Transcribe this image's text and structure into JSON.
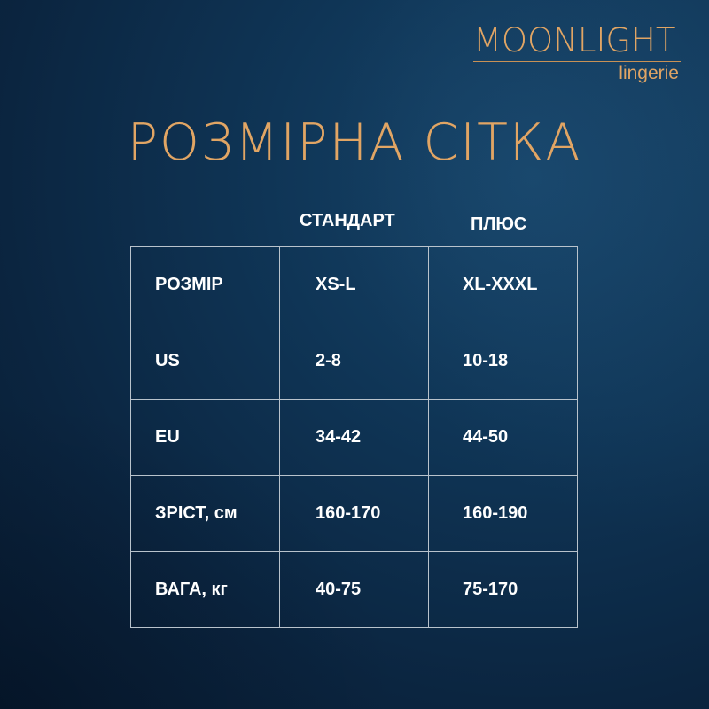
{
  "logo": {
    "name": "MOONLIGHT",
    "sub": "lingerie"
  },
  "title": "РОЗМІРНА СІТКА",
  "columns": [
    "СТАНДАРТ",
    "ПЛЮС"
  ],
  "rows": [
    {
      "label": "РОЗМІР",
      "standard": "XS-L",
      "plus": "XL-XXXL"
    },
    {
      "label": "US",
      "standard": "2-8",
      "plus": "10-18"
    },
    {
      "label": "EU",
      "standard": "34-42",
      "plus": "44-50"
    },
    {
      "label": "ЗРІСТ, см",
      "standard": "160-170",
      "plus": "160-190"
    },
    {
      "label": "ВАГА, кг",
      "standard": "40-75",
      "plus": "75-170"
    }
  ],
  "colors": {
    "accent": "#e1a564",
    "background": "#0c2a45"
  }
}
